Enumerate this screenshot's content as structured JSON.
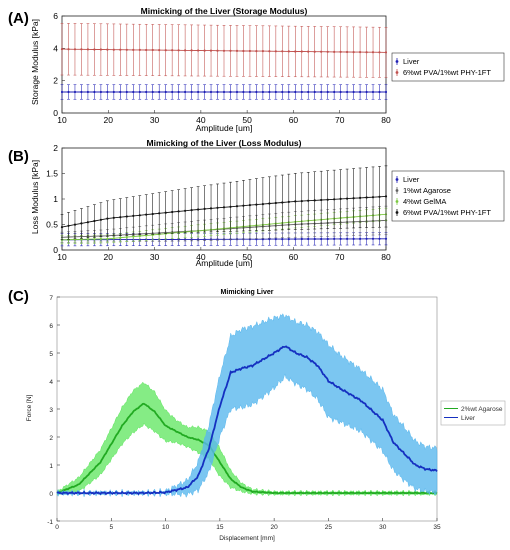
{
  "panel_letters": [
    "(A)",
    "(B)",
    "(C)"
  ],
  "colors": {
    "liver": "#1f1fb4",
    "pva": "#c0504d",
    "agarose": "#606060",
    "gelma": "#7cc840",
    "pvaB": "#111111",
    "agaroseC": "#22aa22",
    "agaroseC_band": "#5ce65c",
    "liverC": "#1530c0",
    "liverC_band": "#5ab8ee"
  },
  "chart_data": [
    {
      "type": "line",
      "title": "Mimicking of the Liver (Storage Modulus)",
      "xlabel": "Amplitude [um]",
      "ylabel": "Storage Modulus [kPa]",
      "xlim": [
        10,
        80
      ],
      "ylim": [
        0,
        6
      ],
      "xticks": [
        10,
        20,
        30,
        40,
        50,
        60,
        70,
        80
      ],
      "yticks": [
        0,
        2,
        4,
        6
      ],
      "legend_position": "right",
      "series": [
        {
          "name": "Liver",
          "color": "#1f1fb4",
          "x": [
            10,
            80
          ],
          "y": [
            1.3,
            1.3
          ],
          "err": [
            0.45,
            0.45
          ]
        },
        {
          "name": "6%wt PVA/1%wt PHY-1FT",
          "color": "#c0504d",
          "x": [
            10,
            80
          ],
          "y": [
            3.95,
            3.75
          ],
          "err": [
            1.6,
            1.55
          ]
        }
      ]
    },
    {
      "type": "line",
      "title": "Mimicking of the Liver (Loss Modulus)",
      "xlabel": "Amplitude [um]",
      "ylabel": "Loss Modulus [kPa]",
      "xlim": [
        10,
        80
      ],
      "ylim": [
        0,
        2
      ],
      "xticks": [
        10,
        20,
        30,
        40,
        50,
        60,
        70,
        80
      ],
      "yticks": [
        0,
        0.5,
        1,
        1.5,
        2
      ],
      "legend_position": "right",
      "series": [
        {
          "name": "Liver",
          "color": "#1f1fb4",
          "x": [
            10,
            80
          ],
          "y": [
            0.2,
            0.22
          ],
          "err": [
            0.12,
            0.12
          ]
        },
        {
          "name": "1%wt Agarose",
          "color": "#606060",
          "x": [
            10,
            20,
            40,
            60,
            80
          ],
          "y": [
            0.25,
            0.28,
            0.38,
            0.5,
            0.58
          ],
          "err": [
            0.1,
            0.12,
            0.2,
            0.25,
            0.28
          ]
        },
        {
          "name": "4%wt GelMA",
          "color": "#7cc840",
          "x": [
            10,
            20,
            40,
            60,
            80
          ],
          "y": [
            0.2,
            0.22,
            0.38,
            0.55,
            0.7
          ],
          "err": [
            0.08,
            0.08,
            0.12,
            0.12,
            0.12
          ]
        },
        {
          "name": "6%wt PVA/1%wt PHY-1FT",
          "color": "#111111",
          "x": [
            10,
            20,
            40,
            60,
            80
          ],
          "y": [
            0.45,
            0.62,
            0.8,
            0.95,
            1.05
          ],
          "err": [
            0.25,
            0.35,
            0.45,
            0.55,
            0.6
          ]
        }
      ]
    },
    {
      "type": "area",
      "title": "Mimicking Liver",
      "xlabel": "Displacement [mm]",
      "ylabel": "Force [N]",
      "xlim": [
        0,
        35
      ],
      "ylim": [
        -1,
        7
      ],
      "xticks": [
        0,
        5,
        10,
        15,
        20,
        25,
        30,
        35
      ],
      "yticks": [
        -1,
        0,
        1,
        2,
        3,
        4,
        5,
        6,
        7
      ],
      "legend_position": "right",
      "series": [
        {
          "name": "2%wt Agarose",
          "color": "#22aa22",
          "x": [
            0,
            2,
            4,
            6,
            7,
            8,
            9,
            10,
            11,
            12,
            13,
            14,
            15,
            16,
            17,
            18,
            20,
            25,
            35
          ],
          "y": [
            0,
            0.3,
            1.1,
            2.4,
            2.9,
            3.2,
            2.9,
            2.4,
            2.2,
            2.0,
            1.9,
            1.7,
            1.1,
            0.5,
            0.2,
            0.05,
            0,
            0,
            0
          ],
          "err": [
            0.05,
            0.25,
            0.45,
            0.65,
            0.75,
            0.75,
            0.7,
            0.55,
            0.4,
            0.35,
            0.45,
            0.5,
            0.5,
            0.3,
            0.15,
            0.08,
            0.05,
            0.05,
            0.05
          ]
        },
        {
          "name": "Liver",
          "color": "#1530c0",
          "x": [
            0,
            8,
            10,
            12,
            13,
            14,
            15,
            16,
            17,
            18,
            20,
            21,
            22,
            23,
            24,
            25,
            26,
            28,
            30,
            31,
            32,
            33,
            34,
            35
          ],
          "y": [
            0,
            0,
            0.02,
            0.2,
            0.6,
            1.6,
            3.1,
            4.3,
            4.45,
            4.55,
            5.0,
            5.25,
            5.0,
            4.85,
            4.55,
            4.0,
            3.75,
            3.3,
            2.6,
            1.8,
            1.4,
            1.0,
            0.85,
            0.8
          ],
          "err": [
            0.02,
            0.02,
            0.05,
            0.25,
            0.5,
            0.85,
            1.1,
            1.3,
            1.4,
            1.4,
            1.25,
            1.1,
            1.1,
            1.15,
            1.2,
            1.3,
            1.2,
            1.1,
            1.1,
            1.0,
            0.95,
            0.85,
            0.8,
            0.8
          ]
        }
      ]
    }
  ]
}
